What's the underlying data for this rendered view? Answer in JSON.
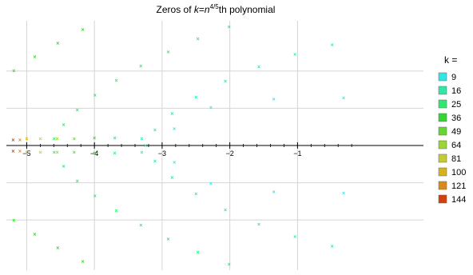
{
  "chart_data": {
    "type": "scatter",
    "title": {
      "prefix": "Zeros of ",
      "k": "k",
      "eq": "=",
      "n": "n",
      "exp": "4/5",
      "suffix": "th polynomial"
    },
    "xlabel": "",
    "ylabel": "",
    "xlim": [
      -5.3,
      0.86
    ],
    "ylim": [
      -3.35,
      3.35
    ],
    "x_ticks": [
      -5,
      -4,
      -3,
      -2,
      -1
    ],
    "x_tick_labels": [
      "−5",
      "−4",
      "−3",
      "−2",
      "−1"
    ],
    "y_gridlines": [
      -2,
      -1,
      1,
      2
    ],
    "grid": true,
    "marker": "×",
    "legend": {
      "title": "k =",
      "position": "right"
    },
    "series": [
      {
        "name": "9",
        "n": 9,
        "color": "#33e6e6",
        "points": [
          [
            -2.82,
            0.45
          ],
          [
            -2.82,
            -0.45
          ],
          [
            -2.28,
            1.02
          ],
          [
            -2.28,
            -1.02
          ],
          [
            -1.35,
            1.25
          ],
          [
            -1.35,
            -1.25
          ],
          [
            -0.32,
            1.28
          ],
          [
            -0.32,
            -1.28
          ]
        ]
      },
      {
        "name": "16",
        "n": 16,
        "color": "#33e6a8",
        "points": [
          [
            -3.3,
            0.18
          ],
          [
            -3.3,
            -0.18
          ]
        ]
      },
      {
        "name": "25",
        "n": 25,
        "color": "#33e670",
        "points": [
          [
            -3.7,
            0.2
          ],
          [
            -3.7,
            -0.2
          ]
        ]
      },
      {
        "name": "36",
        "n": 36,
        "color": "#33d633",
        "points": [
          [
            -4.0,
            0.2
          ],
          [
            -4.0,
            -0.2
          ]
        ]
      },
      {
        "name": "49",
        "n": 49,
        "color": "#66d633",
        "points": [
          [
            -4.3,
            0.18
          ],
          [
            -4.3,
            -0.18
          ]
        ]
      },
      {
        "name": "64",
        "n": 64,
        "color": "#99d633",
        "points": [
          [
            -4.55,
            0.18
          ],
          [
            -4.55,
            -0.18
          ]
        ]
      },
      {
        "name": "81",
        "n": 81,
        "color": "#c3cc33",
        "points": [
          [
            -4.8,
            0.18
          ],
          [
            -4.8,
            -0.18
          ]
        ]
      },
      {
        "name": "100",
        "n": 100,
        "color": "#d4b31f",
        "points": [
          [
            -5.0,
            0.18
          ],
          [
            -5.0,
            -0.18
          ]
        ]
      },
      {
        "name": "121",
        "n": 121,
        "color": "#d98a1a",
        "points": [
          [
            -5.1,
            0.15
          ],
          [
            -5.1,
            -0.15
          ]
        ]
      },
      {
        "name": "144",
        "n": 144,
        "color": "#d4400d",
        "points": [
          [
            -5.2,
            0.15
          ],
          [
            -5.2,
            -0.15
          ]
        ]
      }
    ]
  }
}
